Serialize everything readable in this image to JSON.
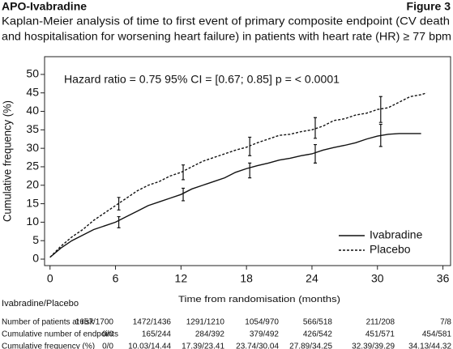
{
  "chart_data": {
    "type": "line",
    "header": "APO-Ivabradine",
    "figure_label": "Figure 3",
    "subtitle_lines": [
      "Kaplan-Meier analysis of time to first event of primary composite endpoint (CV death",
      "and hospitalisation for worsening heart failure) in patients with heart rate (HR) ≥ 77 bpm"
    ],
    "annotation": "Hazard ratio = 0.75 95% CI = [0.67; 0.85] p = < 0.0001",
    "xlabel": "Time from randomisation (months)",
    "ylabel": "Cumulative frequency (%)",
    "xlim": [
      -0.5,
      36.7
    ],
    "ylim": [
      -1.75,
      54.8
    ],
    "xticks": [
      0,
      6,
      12,
      18,
      24,
      30,
      36
    ],
    "yticks": [
      0,
      5,
      10,
      15,
      20,
      25,
      30,
      35,
      40,
      45,
      50
    ],
    "legend": "lower right",
    "series": [
      {
        "name": "Ivabradine",
        "color": "#111111",
        "dashed": false,
        "x": [
          0,
          1,
          2,
          3,
          4,
          5,
          6,
          7,
          8,
          9,
          10,
          11,
          12,
          13,
          14,
          15,
          16,
          17,
          18,
          19,
          20,
          21,
          22,
          23,
          24,
          25,
          26,
          27,
          28,
          29,
          30,
          31,
          32,
          33,
          34
        ],
        "values": [
          0.5,
          3,
          5,
          6.5,
          8,
          9,
          10,
          11.5,
          13,
          14.5,
          15.5,
          16.5,
          17.5,
          19,
          20,
          21,
          22,
          23.5,
          24.5,
          25.3,
          26,
          26.8,
          27.3,
          28,
          28.5,
          29.5,
          30.2,
          30.8,
          31.5,
          32.5,
          33.3,
          33.8,
          34,
          34,
          34
        ],
        "ci_x": [
          6.3,
          12.2,
          18.3,
          24.3,
          30.3
        ],
        "ci_values": [
          10,
          17.5,
          24,
          28.5,
          33.5
        ],
        "ci_errors": [
          1.5,
          1.7,
          2,
          2.5,
          3
        ]
      },
      {
        "name": "Placebo",
        "color": "#111111",
        "dashed": true,
        "x": [
          0,
          1,
          2,
          3,
          4,
          5,
          6,
          7,
          8,
          9,
          10,
          11,
          12,
          13,
          14,
          15,
          16,
          17,
          18,
          19,
          20,
          21,
          22,
          23,
          24,
          25,
          26,
          27,
          28,
          29,
          30,
          31,
          32,
          33,
          34,
          34.5
        ],
        "values": [
          0.5,
          3.5,
          6,
          8,
          10.5,
          12.5,
          14.5,
          16.5,
          18.5,
          20,
          21,
          22.5,
          23.5,
          25,
          26.5,
          27.5,
          28.5,
          29.5,
          30.3,
          31.5,
          32.5,
          33.5,
          33.8,
          34.5,
          35,
          36,
          37.5,
          38,
          39,
          39.5,
          40.5,
          41,
          42.5,
          44,
          44.5,
          45
        ],
        "ci_x": [
          6.3,
          12.2,
          18.3,
          24.3,
          30.3
        ],
        "ci_values": [
          15,
          23.5,
          30.5,
          35.5,
          40.5
        ],
        "ci_errors": [
          1.7,
          2,
          2.5,
          2.8,
          3.5
        ]
      }
    ],
    "risk_table": {
      "header": "Ivabradine/Placebo",
      "rows": [
        {
          "label": "Number of patients at risk",
          "values": [
            "1657/1700",
            "1472/1436",
            "1291/1210",
            "1054/970",
            "566/518",
            "211/208",
            "7/8"
          ]
        },
        {
          "label": "Cumulative number of endpoints",
          "values": [
            "0/0",
            "165/244",
            "284/392",
            "379/492",
            "426/542",
            "451/571",
            "454/581"
          ]
        },
        {
          "label": "Cumulative frequency (%)",
          "values": [
            "0/0",
            "10.03/14.44",
            "17.39/23.41",
            "23.74/30.04",
            "27.89/34.25",
            "32.39/39.29",
            "34.13/44.32"
          ]
        }
      ]
    }
  }
}
